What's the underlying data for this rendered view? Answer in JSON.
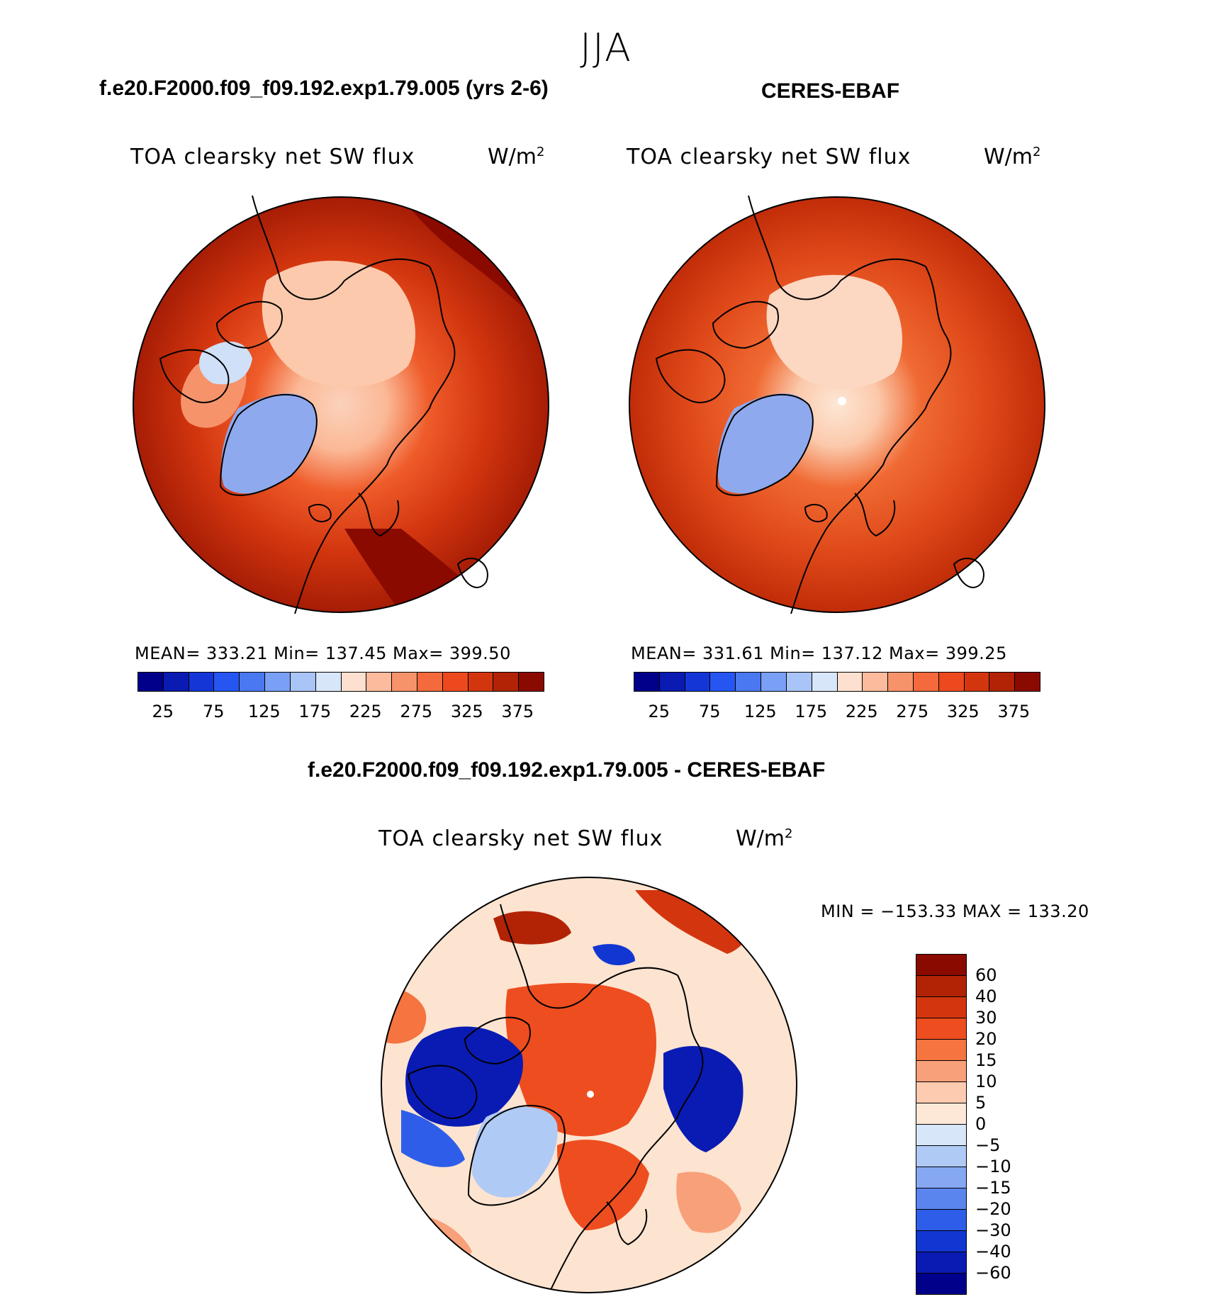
{
  "season": "JJA",
  "case_title": "f.e20.F2000.f09_f09.192.exp1.79.005 (yrs 2-6)",
  "obs_title": "CERES-EBAF",
  "diff_title": "f.e20.F2000.f09_f09.192.exp1.79.005 - CERES-EBAF",
  "variable_label": "TOA clearsky net SW flux",
  "units_base": "W/m",
  "units_exp": "2",
  "panels": {
    "model": {
      "stats": "MEAN= 333.21   Min= 137.45   Max= 399.50"
    },
    "obs": {
      "stats": "MEAN= 331.61   Min= 137.12   Max= 399.25"
    },
    "diff": {
      "stats": "MIN = −153.33 MAX = 133.20"
    }
  },
  "abs_colorbar": {
    "tick_labels": [
      "25",
      "75",
      "125",
      "175",
      "225",
      "275",
      "325",
      "375"
    ],
    "colors": [
      "#00008b",
      "#0a1bb3",
      "#1536d6",
      "#2656f2",
      "#4a78f0",
      "#7aa0f5",
      "#a9c4f6",
      "#d7e6f8",
      "#fde0cf",
      "#fbbb9c",
      "#f7936a",
      "#f46a3c",
      "#ec4a1e",
      "#d3360f",
      "#b22306",
      "#8b0a00"
    ]
  },
  "diff_colorbar": {
    "labels": [
      "60",
      "40",
      "30",
      "20",
      "15",
      "10",
      "5",
      "0",
      "−5",
      "−10",
      "−15",
      "−20",
      "−30",
      "−40",
      "−60"
    ],
    "colors": [
      "#8b0a00",
      "#b22306",
      "#d3360f",
      "#ee4d1f",
      "#f5743f",
      "#f8a07a",
      "#fdcbb0",
      "#fde7d6",
      "#d7e6f8",
      "#b0caf6",
      "#86a8f3",
      "#5a85ef",
      "#2e5ee9",
      "#1236d2",
      "#0a1bb3",
      "#00008b"
    ]
  }
}
